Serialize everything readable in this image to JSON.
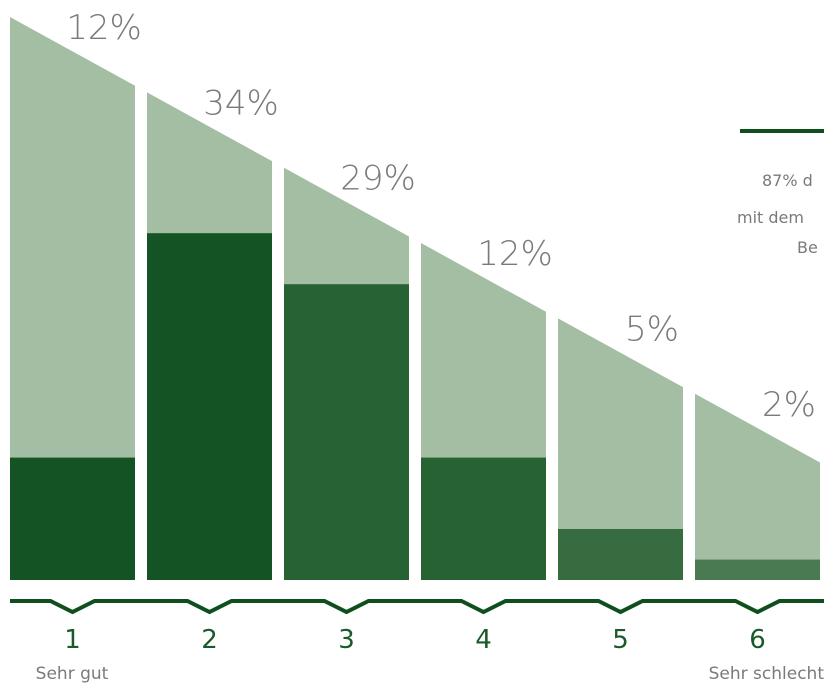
{
  "chart_data": {
    "type": "bar",
    "categories": [
      "1",
      "2",
      "3",
      "4",
      "5",
      "6"
    ],
    "values": [
      12,
      34,
      29,
      12,
      5,
      2
    ],
    "value_labels": [
      "12%",
      "34%",
      "29%",
      "12%",
      "5%",
      "2%"
    ],
    "scale_ends": {
      "left": "Sehr gut",
      "right": "Sehr schlecht"
    },
    "note_lines": [
      "87% d",
      "mit dem",
      "Be"
    ],
    "colors": {
      "light": "#a3bea3",
      "dark": [
        "#145424",
        "#145424",
        "#266232",
        "#266232",
        "#376b40",
        "#4a7a52"
      ],
      "axis": "#0f4f1e",
      "pct_text": "#7a7a7a",
      "cat_text": "#1a5a2a"
    }
  }
}
